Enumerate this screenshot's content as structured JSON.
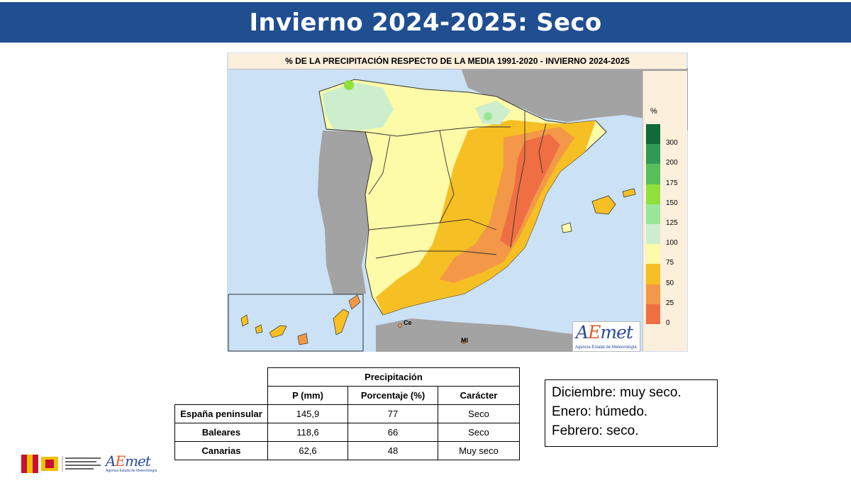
{
  "slide": {
    "title": "Invierno 2024-2025: Seco"
  },
  "map": {
    "title": "% DE LA PRECIPITACIÓN RESPECTO DE LA MEDIA 1991-2020 - INVIERNO 2024-2025",
    "labels": {
      "ceuta": "Ce",
      "melilla": "Ml"
    }
  },
  "legend": {
    "unit": "%",
    "classes": [
      {
        "label": "300",
        "color": "#0f6b3a"
      },
      {
        "label": "200",
        "color": "#2f9a55"
      },
      {
        "label": "175",
        "color": "#56bf59"
      },
      {
        "label": "150",
        "color": "#8fe03a"
      },
      {
        "label": "125",
        "color": "#99e699"
      },
      {
        "label": "100",
        "color": "#cceecc"
      },
      {
        "label": "75",
        "color": "#fdfaa8"
      },
      {
        "label": "50",
        "color": "#f6bf23"
      },
      {
        "label": "25",
        "color": "#f39848"
      },
      {
        "label": "0",
        "color": "#ef6e43"
      }
    ]
  },
  "logos": {
    "aemet_text": "AEmet",
    "aemet_sub": "Agencia Estatal de Meteorología"
  },
  "table": {
    "group_header": "Precipitación",
    "columns": [
      "P (mm)",
      "Porcentaje (%)",
      "Carácter"
    ],
    "rows": [
      {
        "label": "España peninsular",
        "p": "145,9",
        "pct": "77",
        "car": "Seco"
      },
      {
        "label": "Baleares",
        "p": "118,6",
        "pct": "66",
        "car": "Seco"
      },
      {
        "label": "Canarias",
        "p": "62,6",
        "pct": "48",
        "car": "Muy seco"
      }
    ]
  },
  "monthly_notes": [
    "Diciembre: muy seco.",
    "Enero: húmedo.",
    "Febrero: seco."
  ]
}
